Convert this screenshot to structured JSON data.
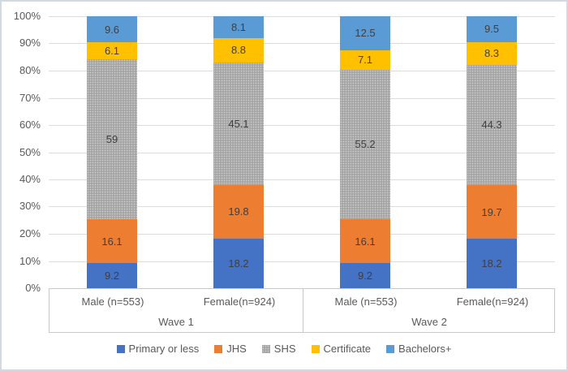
{
  "chart_data": {
    "type": "bar",
    "variant": "100-percent-stacked-column",
    "title": "",
    "xlabel": "",
    "ylabel": "",
    "categories": [
      "Male (n=553)",
      "Female(n=924)",
      "Male (n=553)",
      "Female(n=924)"
    ],
    "groups": [
      {
        "label": "Wave 1",
        "start": 0,
        "end": 1
      },
      {
        "label": "Wave 2",
        "start": 2,
        "end": 3
      }
    ],
    "series": [
      {
        "name": "Primary or less",
        "color": "#4472C4",
        "values": [
          9.2,
          18.2,
          9.2,
          18.2
        ]
      },
      {
        "name": "JHS",
        "color": "#ED7D31",
        "values": [
          16.1,
          19.8,
          16.1,
          19.7
        ]
      },
      {
        "name": "SHS",
        "color": "#A5A5A5",
        "texture": "dotted",
        "values": [
          59,
          45.1,
          55.2,
          44.3
        ]
      },
      {
        "name": "Certificate",
        "color": "#FFC000",
        "values": [
          6.1,
          8.8,
          7.1,
          8.3
        ]
      },
      {
        "name": "Bachelors+",
        "color": "#5B9BD5",
        "values": [
          9.6,
          8.1,
          12.5,
          9.5
        ]
      }
    ],
    "y_axis": {
      "min": 0,
      "max": 100,
      "step": 10,
      "tick_labels": [
        "0%",
        "10%",
        "20%",
        "30%",
        "40%",
        "50%",
        "60%",
        "70%",
        "80%",
        "90%",
        "100%"
      ]
    },
    "gridlines": true,
    "data_labels": true,
    "legend_position": "bottom"
  }
}
